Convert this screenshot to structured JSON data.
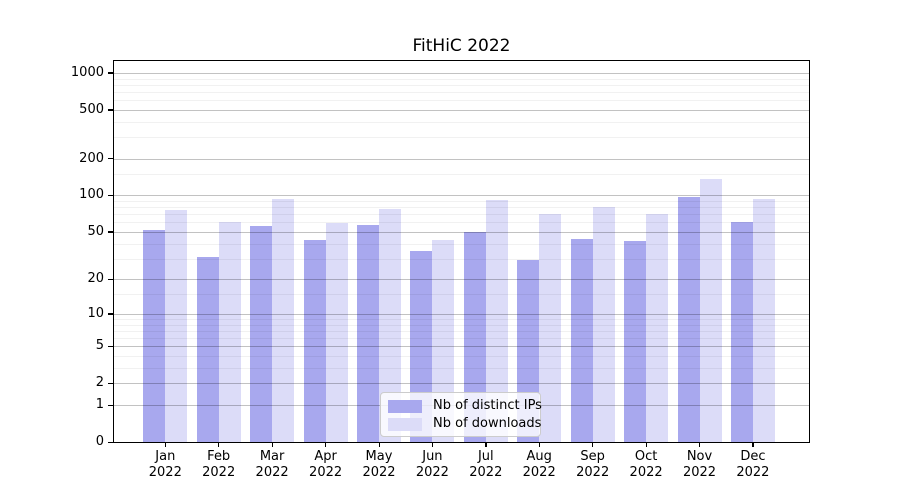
{
  "chart_data": {
    "type": "bar",
    "title": "FitHiC 2022",
    "categories": [
      "Jan 2022",
      "Feb 2022",
      "Mar 2022",
      "Apr 2022",
      "May 2022",
      "Jun 2022",
      "Jul 2022",
      "Aug 2022",
      "Sep 2022",
      "Oct 2022",
      "Nov 2022",
      "Dec 2022"
    ],
    "series": [
      {
        "name": "Nb of distinct IPs",
        "color": "#a8a8ee",
        "values": [
          52,
          31,
          56,
          43,
          57,
          35,
          50,
          29,
          44,
          42,
          97,
          61
        ]
      },
      {
        "name": "Nb of downloads",
        "color": "#dcdcf8",
        "values": [
          76,
          60,
          93,
          59,
          77,
          43,
          92,
          71,
          81,
          70,
          136,
          94
        ]
      }
    ],
    "xlabel": "",
    "ylabel": "",
    "yscale": "log1p",
    "ylim": [
      0,
      1250
    ],
    "yticks": [
      0,
      1,
      2,
      5,
      10,
      20,
      50,
      100,
      200,
      500,
      1000
    ],
    "minor_yticks": [
      3,
      4,
      6,
      7,
      8,
      9,
      15,
      30,
      40,
      60,
      70,
      80,
      90,
      150,
      300,
      400,
      600,
      700,
      800,
      900
    ],
    "grid": "horizontal, major and minor, drawn over bars",
    "legend_position": "lower center inside plot"
  }
}
